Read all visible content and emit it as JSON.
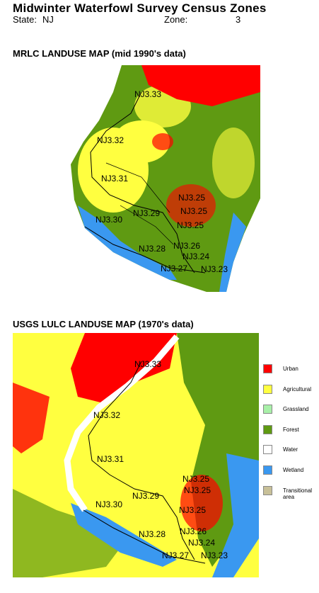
{
  "header": {
    "title": "Midwinter Waterfowl Survey Census Zones",
    "state_label": "State:",
    "state": "NJ",
    "zone_label": "Zone:",
    "zone": "3"
  },
  "maps": [
    {
      "title": "MRLC LANDUSE MAP (mid 1990's data)",
      "zone_labels": [
        "NJ3.33",
        "NJ3.32",
        "NJ3.31",
        "NJ3.25",
        "NJ3.25",
        "NJ3.29",
        "NJ3.30",
        "NJ3.25",
        "NJ3.26",
        "NJ3.28",
        "NJ3.24",
        "NJ3.27",
        "NJ3.23"
      ]
    },
    {
      "title": "USGS LULC LANDUSE MAP (1970's data)",
      "zone_labels": [
        "NJ3.33",
        "NJ3.32",
        "NJ3.31",
        "NJ3.25",
        "NJ3.25",
        "NJ3.29",
        "NJ3.30",
        "NJ3.25",
        "NJ3.28",
        "NJ3.26",
        "NJ3.24",
        "NJ3.27",
        "NJ3.23"
      ]
    }
  ],
  "legend": [
    {
      "label": "Urban",
      "color": "#ff0000"
    },
    {
      "label": "Agricultural",
      "color": "#ffff40"
    },
    {
      "label": "Grassland",
      "color": "#a8f0a8"
    },
    {
      "label": "Forest",
      "color": "#5f9a12"
    },
    {
      "label": "Water",
      "color": "#ffffff"
    },
    {
      "label": "Wetland",
      "color": "#3a98f0"
    },
    {
      "label": "Transitional area",
      "color": "#c8c098"
    }
  ]
}
